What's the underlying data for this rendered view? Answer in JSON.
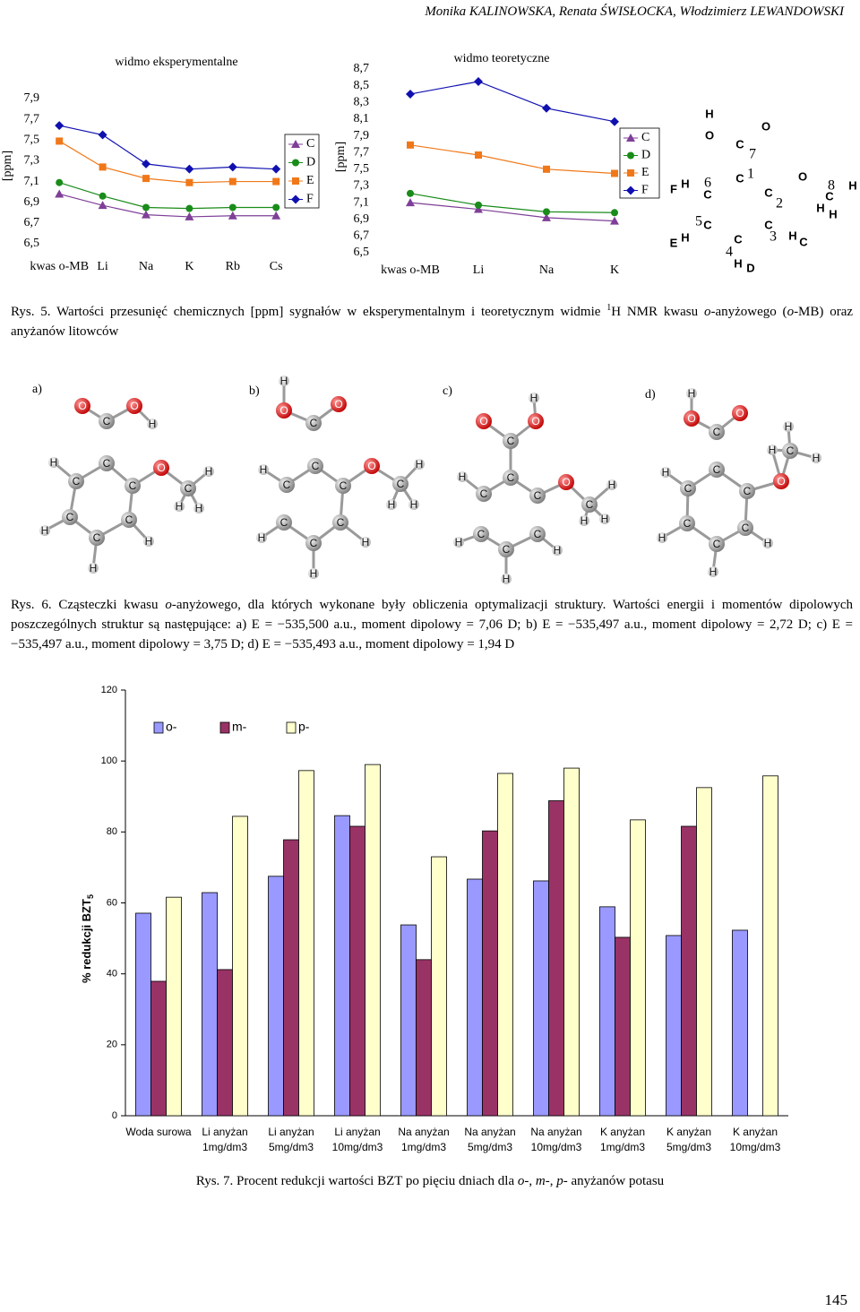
{
  "header": {
    "authors": "Monika KALINOWSKA, Renata ŚWISŁOCKA, Włodzimierz LEWANDOWSKI"
  },
  "chart_data": [
    {
      "type": "line",
      "title": "widmo eksperymentalne",
      "y_label": "[ppm]",
      "categories": [
        "kwas o-MB",
        "Li",
        "Na",
        "K",
        "Rb",
        "Cs"
      ],
      "ylim": [
        6.5,
        7.9
      ],
      "yticks": [
        {
          "value": 6.5,
          "label": "6,5"
        },
        {
          "value": 6.7,
          "label": "6,7"
        },
        {
          "value": 6.9,
          "label": "6,9"
        },
        {
          "value": 7.1,
          "label": "7,1"
        },
        {
          "value": 7.3,
          "label": "7,3"
        },
        {
          "value": 7.5,
          "label": "7,5"
        },
        {
          "value": 7.7,
          "label": "7,7"
        },
        {
          "value": 7.9,
          "label": "7,9"
        }
      ],
      "legend": "right",
      "series": [
        {
          "name": "C",
          "color": "#7f3f98",
          "marker": "triangle",
          "values": [
            6.98,
            6.87,
            6.78,
            6.76,
            6.77,
            6.77
          ]
        },
        {
          "name": "D",
          "color": "#1a8c1a",
          "marker": "circle",
          "values": [
            7.09,
            6.96,
            6.85,
            6.84,
            6.85,
            6.85
          ]
        },
        {
          "name": "E",
          "color": "#f07818",
          "marker": "square",
          "values": [
            7.49,
            7.24,
            7.13,
            7.09,
            7.1,
            7.1
          ]
        },
        {
          "name": "F",
          "color": "#1010b0",
          "marker": "diamond",
          "values": [
            7.64,
            7.55,
            7.27,
            7.22,
            7.24,
            7.22
          ]
        }
      ]
    },
    {
      "type": "line",
      "title": "widmo teoretyczne",
      "y_label": "[ppm]",
      "categories": [
        "kwas o-MB",
        "Li",
        "Na",
        "K"
      ],
      "ylim": [
        6.5,
        8.7
      ],
      "yticks": [
        {
          "value": 6.5,
          "label": "6,5"
        },
        {
          "value": 6.7,
          "label": "6,7"
        },
        {
          "value": 6.9,
          "label": "6,9"
        },
        {
          "value": 7.1,
          "label": "7,1"
        },
        {
          "value": 7.3,
          "label": "7,3"
        },
        {
          "value": 7.5,
          "label": "7,5"
        },
        {
          "value": 7.7,
          "label": "7,7"
        },
        {
          "value": 7.9,
          "label": "7,9"
        },
        {
          "value": 8.1,
          "label": "8,1"
        },
        {
          "value": 8.3,
          "label": "8,3"
        },
        {
          "value": 8.5,
          "label": "8,5"
        },
        {
          "value": 8.7,
          "label": "8,7"
        }
      ],
      "legend": "right",
      "series": [
        {
          "name": "C",
          "color": "#7f3f98",
          "marker": "triangle",
          "values": [
            7.1,
            7.02,
            6.92,
            6.88
          ]
        },
        {
          "name": "D",
          "color": "#1a8c1a",
          "marker": "circle",
          "values": [
            7.21,
            7.07,
            6.99,
            6.98
          ]
        },
        {
          "name": "E",
          "color": "#f07818",
          "marker": "square",
          "values": [
            7.79,
            7.67,
            7.5,
            7.45
          ]
        },
        {
          "name": "F",
          "color": "#1010b0",
          "marker": "diamond",
          "values": [
            8.4,
            8.55,
            8.23,
            8.07
          ]
        }
      ]
    },
    {
      "type": "bar",
      "y_label": "% redukcji BZT",
      "y_label_subscript": "5",
      "categories": [
        "Woda surowa",
        "Li anyżan 1mg/dm3",
        "Li anyżan 5mg/dm3",
        "Li anyżan 10mg/dm3",
        "Na anyżan 1mg/dm3",
        "Na anyżan 5mg/dm3",
        "Na anyżan 10mg/dm3",
        "K anyżan 1mg/dm3",
        "K anyżan 5mg/dm3",
        "K anyżan 10mg/dm3"
      ],
      "ylim": [
        0,
        120
      ],
      "yticks": [
        0,
        20,
        40,
        60,
        80,
        100,
        120
      ],
      "legend": "top",
      "series": [
        {
          "name": "o-",
          "color": "#9999ff",
          "values": [
            57.1,
            62.9,
            67.5,
            84.6,
            53.8,
            66.7,
            66.2,
            58.9,
            50.8,
            52.3
          ]
        },
        {
          "name": "m-",
          "color": "#993366",
          "values": [
            37.9,
            41.2,
            77.8,
            81.6,
            44.0,
            80.3,
            88.8,
            50.3,
            81.6,
            null
          ]
        },
        {
          "name": "p-",
          "color": "#ffffcc",
          "values": [
            61.6,
            84.4,
            97.3,
            99.0,
            73.0,
            96.5,
            98.0,
            83.4,
            92.5,
            95.8
          ]
        }
      ]
    }
  ],
  "figure5": {
    "molecule": {
      "atoms": [
        "H",
        "O",
        "C",
        "O",
        "7",
        "C",
        "1",
        "F",
        "H",
        "6",
        "C",
        "C",
        "2",
        "O",
        "C",
        "8",
        "H",
        "H",
        "H",
        "5",
        "C",
        "E",
        "H",
        "C",
        "3",
        "H",
        "C",
        "C",
        "4",
        "H",
        "D"
      ]
    },
    "caption": [
      "Rys. 5. Wartości przesunięć chemicznych [ppm] sygnałów w eksperymentalnym i teoretycznym widmie ",
      "1",
      "H NMR kwasu ",
      "o",
      "-anyżowego (",
      "o",
      "-MB) oraz anyżanów litowców"
    ]
  },
  "figure6": {
    "molecules": [
      {
        "label": "a)",
        "atoms": [
          "O",
          "C",
          "O",
          "H",
          "H",
          "C",
          "O",
          "H",
          "C",
          "C",
          "C",
          "H",
          "H",
          "H",
          "C",
          "C",
          "H",
          "C",
          "H"
        ]
      },
      {
        "label": "b)",
        "atoms": [
          "H",
          "O",
          "C",
          "O",
          "H",
          "C",
          "O",
          "H",
          "C",
          "C",
          "C",
          "H",
          "H",
          "H",
          "C",
          "C",
          "H",
          "C",
          "H"
        ]
      },
      {
        "label": "c)",
        "atoms": [
          "H",
          "O",
          "C",
          "O",
          "H",
          "C",
          "O",
          "H",
          "C",
          "C",
          "C",
          "H",
          "H",
          "H",
          "C",
          "C",
          "H",
          "C",
          "H"
        ]
      },
      {
        "label": "d)",
        "atoms": [
          "H",
          "O",
          "C",
          "O",
          "H",
          "H",
          "C",
          "H",
          "H",
          "C",
          "O",
          "C",
          "C",
          "H",
          "C",
          "C",
          "H",
          "C",
          "H"
        ]
      }
    ],
    "caption": [
      "Rys. 6. Cząsteczki kwasu ",
      "o",
      "-anyżowego, dla których wykonane były obliczenia optymalizacji struktury. Wartości energii i momentów dipolowych poszczególnych struktur są następujące: a) E = −535,500 a.u., moment dipolowy = 7,06 D; b) E = −535,497 a.u., moment dipolowy = 2,72 D; c) E = −535,497 a.u., moment dipolowy = 3,75 D; d) E = −535,493 a.u., moment dipolowy = 1,94 D"
    ]
  },
  "figure7": {
    "caption": [
      "Rys. 7. Procent redukcji wartości BZT po pięciu dniach dla ",
      "o",
      "-, ",
      "m",
      "-, ",
      "p",
      "- anyżanów potasu"
    ]
  },
  "page_number": 145
}
